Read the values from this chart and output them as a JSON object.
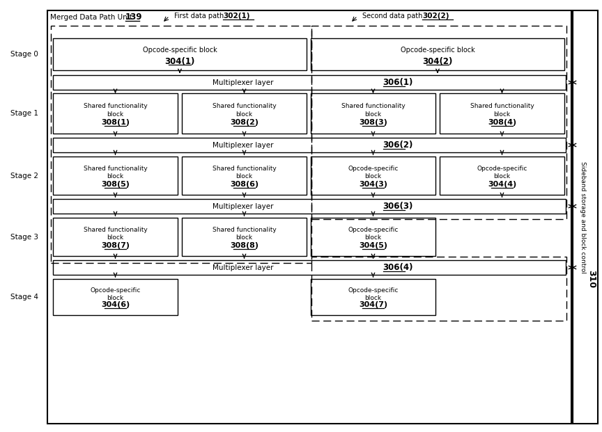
{
  "title_text": "Merged Data Path Unit ",
  "title_num": "139",
  "sideband_label": "Sideband storage and block control",
  "sideband_num": "310",
  "first_path_label": "First data path ",
  "first_path_num": "302(1)",
  "second_path_label": "Second data path ",
  "second_path_num": "302(2)",
  "bg_color": "#ffffff",
  "stage_labels": [
    "Stage 0",
    "Stage 1",
    "Stage 2",
    "Stage 3",
    "Stage 4"
  ],
  "mux_labels": [
    {
      "text": "Multiplexer layer",
      "num": "306(1)"
    },
    {
      "text": "Multiplexer layer",
      "num": "306(2)"
    },
    {
      "text": "Multiplexer layer",
      "num": "306(3)"
    },
    {
      "text": "Multiplexer layer",
      "num": "306(4)"
    }
  ]
}
